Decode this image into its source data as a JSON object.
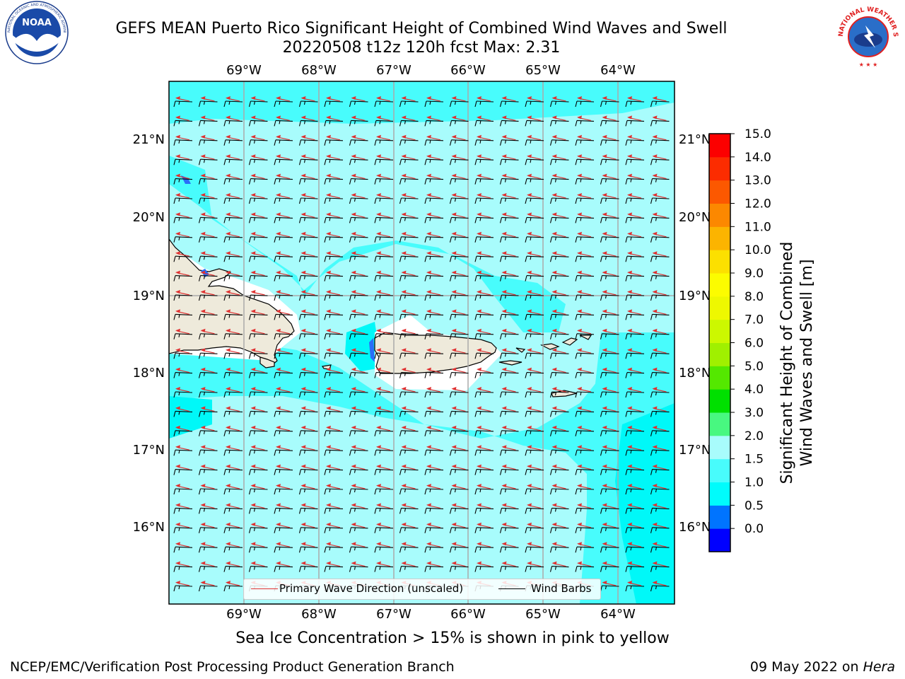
{
  "header": {
    "title_line1": "GEFS MEAN Puerto Rico Significant Height of Combined Wind Waves and Swell",
    "title_line2": "20220508 t12z 120h fcst   Max: 2.31"
  },
  "logos": {
    "left": {
      "name": "noaa-logo",
      "text": "NOAA",
      "ring_text": "NATIONAL OCEANIC AND ATMOSPHERIC ADMINISTRATION · U.S. DEPARTMENT OF COMMERCE"
    },
    "right": {
      "name": "nws-logo",
      "ring_text": "NATIONAL WEATHER SERVICE"
    }
  },
  "map": {
    "lon_ticks": [
      "69°W",
      "68°W",
      "67°W",
      "66°W",
      "65°W",
      "64°W"
    ],
    "lat_ticks": [
      "21°N",
      "20°N",
      "19°N",
      "18°N",
      "17°N",
      "16°N"
    ],
    "colors": {
      "land": "#eeeadb",
      "ocean_light": "#a8fcfc",
      "ocean_mid": "#48fcfc",
      "ocean_deep": "#00f8f8",
      "blue": "#2a6ef8",
      "grid": "#aaaaaa"
    }
  },
  "legend": {
    "primary_wave": "Primary Wave Direction (unscaled)",
    "wind_barbs": "Wind Barbs",
    "primary_color": "#e03030",
    "barb_color": "#000000"
  },
  "colorbar": {
    "title_line1": "Significant Height of Combined",
    "title_line2": "Wind Waves and Swell [m]",
    "ticks": [
      "15.0",
      "14.0",
      "13.0",
      "12.0",
      "11.0",
      "10.0",
      "9.0",
      "8.0",
      "7.0",
      "6.0",
      "5.0",
      "4.0",
      "3.0",
      "2.0",
      "1.5",
      "1.0",
      "0.5",
      "0.0"
    ],
    "colors": [
      "#0000ff",
      "#0074ff",
      "#00fcfc",
      "#48fcfc",
      "#a8fcfc",
      "#48f880",
      "#00e000",
      "#54e800",
      "#a0f000",
      "#ccf800",
      "#eef800",
      "#fcfc00",
      "#fce000",
      "#fcb400",
      "#fc8800",
      "#fc5800",
      "#fc2c00",
      "#fc0000"
    ]
  },
  "notes": {
    "sea_ice": "Sea Ice Concentration > 15% is shown in pink to yellow"
  },
  "footer": {
    "left": "NCEP/EMC/Verification Post Processing Product Generation Branch",
    "right_date": "09 May 2022 on ",
    "right_machine": "Hera"
  }
}
